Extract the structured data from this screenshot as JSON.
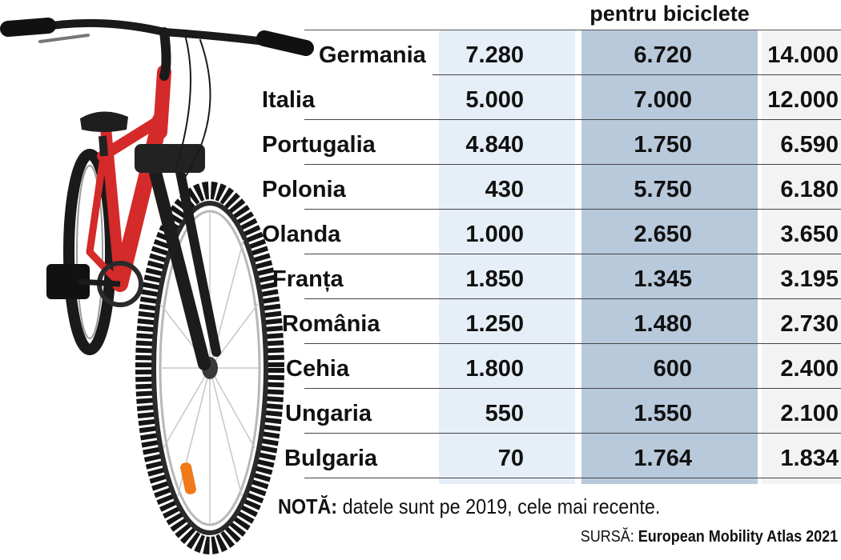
{
  "chart_data": {
    "type": "table",
    "title": "",
    "columns": [
      {
        "header": ""
      },
      {
        "header": "pentru biciclete"
      },
      {
        "header": ""
      }
    ],
    "rows": [
      {
        "country": "Germania",
        "v1": "7.280",
        "v2": "6.720",
        "v3": "14.000"
      },
      {
        "country": "Italia",
        "v1": "5.000",
        "v2": "7.000",
        "v3": "12.000"
      },
      {
        "country": "Portugalia",
        "v1": "4.840",
        "v2": "1.750",
        "v3": "6.590"
      },
      {
        "country": "Polonia",
        "v1": "430",
        "v2": "5.750",
        "v3": "6.180"
      },
      {
        "country": "Olanda",
        "v1": "1.000",
        "v2": "2.650",
        "v3": "3.650"
      },
      {
        "country": "Franța",
        "v1": "1.850",
        "v2": "1.345",
        "v3": "3.195"
      },
      {
        "country": "România",
        "v1": "1.250",
        "v2": "1.480",
        "v3": "2.730"
      },
      {
        "country": "Cehia",
        "v1": "1.800",
        "v2": "600",
        "v3": "2.400"
      },
      {
        "country": "Ungaria",
        "v1": "550",
        "v2": "1.550",
        "v3": "2.100"
      },
      {
        "country": "Bulgaria",
        "v1": "70",
        "v2": "1.764",
        "v3": "1.834"
      }
    ],
    "colors": {
      "column_1": "#e6eef7",
      "column_2": "#b9c9dc",
      "column_3": "#f3f3f3",
      "bike_frame": "#d42a2a"
    },
    "note_label": "NOTĂ:",
    "note_text": " datele sunt pe 2019, cele mai recente.",
    "source_label": "SURSĂ: ",
    "source_text": "European Mobility Atlas 2021"
  },
  "illustration": {
    "icon": "bicycle-icon"
  }
}
